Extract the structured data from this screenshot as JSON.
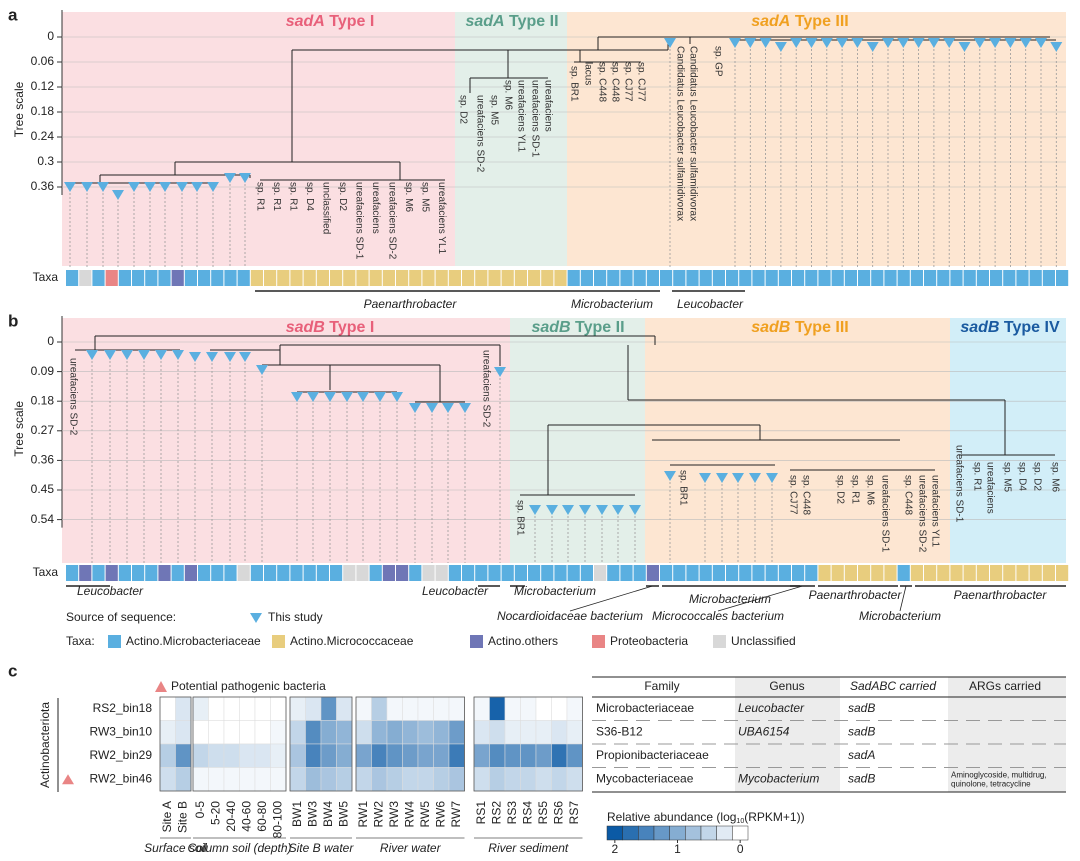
{
  "panel_a": {
    "label": "a",
    "axis_title": "Tree scale",
    "ticks": [
      0,
      0.06,
      0.12,
      0.18,
      0.24,
      0.3,
      0.36
    ],
    "clades": [
      {
        "gene": "sadA",
        "type": "Type I"
      },
      {
        "gene": "sadA",
        "type": "Type II"
      },
      {
        "gene": "sadA",
        "type": "Type III"
      }
    ],
    "taxa_label": "Taxa",
    "taxa_bar": [
      0,
      4,
      0,
      3,
      0,
      0,
      0,
      0,
      2,
      0,
      0,
      0,
      0,
      0,
      1,
      1,
      1,
      1,
      1,
      1,
      1,
      1,
      1,
      1,
      1,
      1,
      1,
      1,
      1,
      1,
      1,
      1,
      1,
      1,
      1,
      1,
      1,
      1,
      0,
      0,
      0,
      0,
      0,
      0,
      0,
      0,
      0,
      0,
      0,
      0,
      0,
      0,
      0,
      0,
      0,
      0,
      0,
      0,
      0,
      0,
      0,
      0,
      0,
      0,
      0,
      0,
      0,
      0,
      0,
      0,
      0,
      0,
      0,
      0,
      0,
      0
    ],
    "leaf_labels": [
      "sp. R1",
      "sp. R1",
      "sp. R1",
      "sp. D4",
      "unclassified",
      "sp. D2",
      "ureafaciens SD-1",
      "ureafaciens",
      "ureafaciens SD-2",
      "sp. M6",
      "sp. M5",
      "ureafaciens YL1",
      "sp. D2",
      "ureafaciens SD-2",
      "sp. M5",
      "sp. M6",
      "ureafaciens YL1",
      "ureafaciens SD-1",
      "ureafaciens",
      "sp. BR1",
      "lacus",
      "sp. C448",
      "sp. C448",
      "sp. CJ77",
      "sp. CJ77",
      "Candidatus Leucobacter sulfamidivorax",
      "Candidatus Leucobacter sulfamidivorax",
      "sp. GP"
    ],
    "genus_labels": [
      "Paenarthrobacter",
      "Microbacterium",
      "Leucobacter"
    ]
  },
  "panel_b": {
    "label": "b",
    "axis_title": "Tree scale",
    "ticks": [
      0,
      0.09,
      0.18,
      0.27,
      0.36,
      0.45,
      0.54
    ],
    "clades": [
      {
        "gene": "sadB",
        "type": "Type I"
      },
      {
        "gene": "sadB",
        "type": "Type II"
      },
      {
        "gene": "sadB",
        "type": "Type III"
      },
      {
        "gene": "sadB",
        "type": "Type IV"
      }
    ],
    "taxa_label": "Taxa",
    "taxa_bar": [
      0,
      2,
      0,
      2,
      0,
      0,
      0,
      2,
      0,
      2,
      0,
      0,
      0,
      4,
      0,
      0,
      0,
      0,
      0,
      0,
      0,
      4,
      4,
      0,
      2,
      2,
      0,
      4,
      4,
      0,
      0,
      0,
      0,
      0,
      0,
      0,
      0,
      0,
      0,
      0,
      4,
      0,
      0,
      0,
      2,
      0,
      0,
      0,
      0,
      0,
      0,
      0,
      0,
      0,
      0,
      0,
      0,
      1,
      1,
      1,
      1,
      1,
      1,
      0,
      1,
      1,
      1,
      1,
      1,
      1,
      1,
      1,
      1,
      1,
      1,
      1
    ],
    "leaf_labels": [
      "ureafaciens SD-2",
      "ureafaciens SD-2",
      "sp. BR1",
      "sp. BR1",
      "sp. CJ77",
      "sp. C448",
      "sp. D2",
      "sp. R1",
      "sp. M6",
      "ureafaciens SD-1",
      "sp. C448",
      "ureafaciens SD-2",
      "ureafaciens YL1",
      "ureafaciens SD-1",
      "sp. R1",
      "ureafaciens",
      "sp. M5",
      "sp. D4",
      "sp. D2",
      "sp. M6"
    ],
    "genus_labels": [
      "Leucobacter",
      "Leucobacter",
      "Microbacterium",
      "Nocardioidaceae bacterium",
      "Microbacterium",
      "Micrococcales bacterium",
      "Paenarthrobacter",
      "Microbacterium",
      "Paenarthrobacter"
    ]
  },
  "legend": {
    "source_title": "Source of sequence:",
    "source_item": "This study",
    "taxa_title": "Taxa:",
    "taxa": [
      {
        "name": "Actino.Microbacteriaceae",
        "color": "#5aafe0"
      },
      {
        "name": "Actino.Micrococcaceae",
        "color": "#e8cd7e"
      },
      {
        "name": "Actino.others",
        "color": "#6f76b6"
      },
      {
        "name": "Proteobacteria",
        "color": "#e98585"
      },
      {
        "name": "Unclassified",
        "color": "#d8d8d8"
      }
    ]
  },
  "panel_c": {
    "label": "c",
    "pathogen_note": "Potential pathogenic bacteria",
    "phylum": "Actinobacteriota",
    "rows": [
      "RS2_bin18",
      "RW3_bin10",
      "RW2_bin29",
      "RW2_bin46"
    ],
    "pathogenic_row": 3,
    "groups": [
      {
        "name": "Surface soil",
        "columns": [
          "Site A",
          "Site B"
        ]
      },
      {
        "name": "Column soil (depth)",
        "columns": [
          "0-5",
          "5-20",
          "20-40",
          "40-60",
          "60-80",
          "80-100"
        ]
      },
      {
        "name": "Site B water",
        "columns": [
          "BW1",
          "BW3",
          "BW4",
          "BW5"
        ]
      },
      {
        "name": "River water",
        "columns": [
          "RW1",
          "RW2",
          "RW3",
          "RW4",
          "RW5",
          "RW6",
          "RW7"
        ]
      },
      {
        "name": "River sediment",
        "columns": [
          "RS1",
          "RS2",
          "RS3",
          "RS4",
          "RS5",
          "RS6",
          "RS7"
        ]
      }
    ],
    "values": [
      [
        0,
        0.3,
        0.2,
        0,
        0,
        0,
        0,
        0,
        0.2,
        0.3,
        1.3,
        0.3,
        0.1,
        0.6,
        0.1,
        0.1,
        0.1,
        0.1,
        0.1,
        0.1,
        1.9,
        0.1,
        0.1,
        0,
        0,
        0.1
      ],
      [
        0.2,
        0.3,
        0,
        0,
        0,
        0,
        0,
        0.1,
        0.5,
        1.4,
        1.0,
        0.9,
        0.4,
        0.9,
        1.0,
        0.9,
        0.8,
        0.9,
        1.2,
        0.3,
        0.4,
        0.2,
        0.2,
        0.2,
        0.3,
        0.2
      ],
      [
        0.6,
        1.3,
        0.5,
        0.4,
        0.4,
        0.3,
        0.3,
        0.2,
        0.7,
        1.5,
        1.2,
        1.0,
        1.1,
        1.5,
        1.3,
        1.2,
        1.1,
        1.1,
        1.6,
        1.1,
        1.4,
        1.3,
        1.3,
        1.2,
        1.7,
        1.3
      ],
      [
        0.4,
        0.6,
        0.1,
        0.1,
        0.1,
        0.1,
        0.1,
        0.1,
        0.5,
        0.8,
        0.7,
        0.6,
        0.5,
        0.7,
        0.6,
        0.5,
        0.5,
        0.6,
        0.7,
        0.4,
        0.6,
        0.5,
        0.5,
        0.4,
        0.5,
        0.4
      ]
    ],
    "scale": {
      "title": [
        "Relative abundance (log",
        "10",
        "(RPKM+1))"
      ],
      "ticks": [
        2,
        1,
        0
      ],
      "color": "#0b5aa5"
    },
    "table": {
      "header": [
        "Family",
        "Genus",
        "SadABC carried",
        "ARGs carried"
      ],
      "rows": [
        {
          "family": "Microbacteriaceae",
          "genus": "Leucobacter",
          "sad": "sadB"
        },
        {
          "family": "S36-B12",
          "genus": "UBA6154",
          "sad": "sadB"
        },
        {
          "family": "Propionibacteriaceae",
          "sad": "sadA"
        },
        {
          "family": "Mycobacteriaceae",
          "genus": "Mycobacterium",
          "sad": "sadB",
          "args": [
            "Aminoglycoside, multidrug,",
            "quinolone, tetracycline"
          ]
        }
      ]
    }
  }
}
